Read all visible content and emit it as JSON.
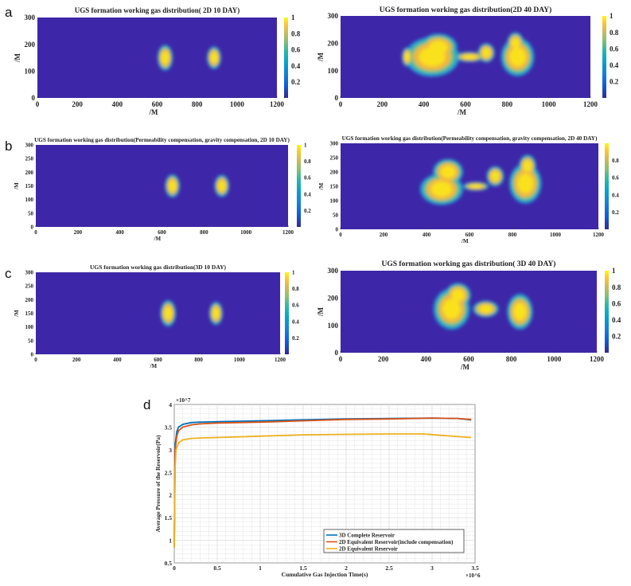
{
  "panel_labels": [
    "a",
    "b",
    "c",
    "d"
  ],
  "chart_data": [
    {
      "type": "heatmap",
      "panel": "a",
      "title": "UGS formation working gas distribution( 2D 10 DAY)",
      "xlabel": "/M",
      "ylabel": "/M",
      "xlim": [
        0,
        1200
      ],
      "ylim": [
        0,
        300
      ],
      "xticks": [
        "0",
        "200",
        "400",
        "600",
        "800",
        "1000",
        "1200"
      ],
      "yticks": [
        "0",
        "100",
        "200",
        "300"
      ],
      "colorbar_ticks": [
        "0.2",
        "0.4",
        "0.6",
        "0.8",
        "1"
      ],
      "colorbar_range": [
        0,
        1
      ],
      "colormap": "parula"
    },
    {
      "type": "heatmap",
      "panel": "a",
      "title": "UGS formation working gas distribution(2D 40 DAY)",
      "xlabel": "/M",
      "ylabel": "/M",
      "xlim": [
        0,
        1200
      ],
      "ylim": [
        0,
        300
      ],
      "xticks": [
        "0",
        "200",
        "400",
        "600",
        "800",
        "1000",
        "1200"
      ],
      "yticks": [
        "0",
        "100",
        "200",
        "300"
      ],
      "colorbar_ticks": [
        "0.2",
        "0.4",
        "0.6",
        "0.8",
        "1"
      ],
      "colorbar_range": [
        0,
        1
      ],
      "colormap": "parula"
    },
    {
      "type": "heatmap",
      "panel": "b",
      "title": "UGS formation working gas distribution(Permeability compensation, gravity compensation, 2D 10 DAY)",
      "xlabel": "/M",
      "ylabel": "/M",
      "xlim": [
        0,
        1200
      ],
      "ylim": [
        0,
        300
      ],
      "xticks": [
        "0",
        "200",
        "400",
        "600",
        "800",
        "1000",
        "1200"
      ],
      "yticks": [
        "0",
        "50",
        "100",
        "150",
        "200",
        "250",
        "300"
      ],
      "colorbar_ticks": [
        "0.2",
        "0.4",
        "0.6",
        "0.8",
        "1"
      ],
      "colorbar_range": [
        0,
        1
      ],
      "colormap": "parula"
    },
    {
      "type": "heatmap",
      "panel": "b",
      "title": "UGS formation working gas distribution(Permeability compensation, gravity compensation, 2D 40 DAY)",
      "xlabel": "/M",
      "ylabel": "/M",
      "xlim": [
        0,
        1200
      ],
      "ylim": [
        0,
        300
      ],
      "xticks": [
        "0",
        "200",
        "400",
        "600",
        "800",
        "1000",
        "1200"
      ],
      "yticks": [
        "0",
        "50",
        "100",
        "150",
        "200",
        "250",
        "300"
      ],
      "colorbar_ticks": [
        "0.2",
        "0.4",
        "0.6",
        "0.8"
      ],
      "colorbar_range": [
        0,
        1
      ],
      "colormap": "parula"
    },
    {
      "type": "heatmap",
      "panel": "c",
      "title": "UGS formation working gas distribution(3D 10 DAY)",
      "xlabel": "/M",
      "ylabel": "/M",
      "xlim": [
        0,
        1200
      ],
      "ylim": [
        0,
        300
      ],
      "xticks": [
        "0",
        "200",
        "400",
        "600",
        "800",
        "1000",
        "1200"
      ],
      "yticks": [
        "0",
        "50",
        "100",
        "150",
        "200",
        "250",
        "300"
      ],
      "colorbar_ticks": [
        "0.2",
        "0.4",
        "0.6",
        "0.8",
        "1"
      ],
      "colorbar_range": [
        0,
        1
      ],
      "colormap": "parula"
    },
    {
      "type": "heatmap",
      "panel": "c",
      "title": "UGS formation working gas distribution( 3D 40 DAY)",
      "xlabel": "/M",
      "ylabel": "/M",
      "xlim": [
        0,
        1200
      ],
      "ylim": [
        0,
        300
      ],
      "xticks": [
        "0",
        "200",
        "400",
        "600",
        "800",
        "1000",
        "1200"
      ],
      "yticks": [
        "0",
        "100",
        "200",
        "300"
      ],
      "colorbar_ticks": [
        "0.2",
        "0.4",
        "0.6",
        "0.8",
        "1"
      ],
      "colorbar_range": [
        0,
        1
      ],
      "colormap": "parula"
    },
    {
      "type": "line",
      "panel": "d",
      "xlabel": "Cumulative Gas Injection Time(s)",
      "ylabel": "Average Pressure of the Reservoir(Pa)",
      "x_multiplier": "×10^6",
      "y_multiplier": "×10^7",
      "xlim": [
        0,
        3.5
      ],
      "ylim": [
        0.5,
        4
      ],
      "xticks": [
        "0",
        "0.5",
        "1",
        "1.5",
        "2",
        "2.5",
        "3",
        "3.5"
      ],
      "yticks": [
        "0.5",
        "1",
        "1.5",
        "2",
        "2.5",
        "3",
        "3.5",
        "4"
      ],
      "grid": true,
      "legend_position": "bottom-right",
      "series": [
        {
          "name": "3D Complete Reservoir",
          "color": "#0072bd",
          "x": [
            0,
            0.01,
            0.03,
            0.05,
            0.1,
            0.2,
            0.3,
            0.5,
            1,
            1.5,
            2,
            2.5,
            3,
            3.3,
            3.45
          ],
          "y": [
            0.85,
            3.1,
            3.4,
            3.5,
            3.56,
            3.6,
            3.61,
            3.62,
            3.64,
            3.66,
            3.68,
            3.69,
            3.7,
            3.69,
            3.66
          ]
        },
        {
          "name": "2D Equivalent Reservoir(include compensation)",
          "color": "#d95319",
          "x": [
            0,
            0.01,
            0.03,
            0.05,
            0.1,
            0.2,
            0.3,
            0.5,
            1,
            1.5,
            2,
            2.5,
            3,
            3.3,
            3.45
          ],
          "y": [
            0.85,
            3.0,
            3.3,
            3.42,
            3.5,
            3.55,
            3.57,
            3.59,
            3.61,
            3.64,
            3.67,
            3.68,
            3.7,
            3.69,
            3.67
          ]
        },
        {
          "name": "2D Equivalent Reservoir",
          "color": "#edb120",
          "x": [
            0,
            0.01,
            0.02,
            0.05,
            0.1,
            0.2,
            0.3,
            0.5,
            1,
            1.5,
            2,
            2.5,
            2.9,
            3.1,
            3.45
          ],
          "y": [
            0.85,
            2.6,
            3.0,
            3.15,
            3.22,
            3.25,
            3.26,
            3.27,
            3.3,
            3.33,
            3.34,
            3.35,
            3.35,
            3.32,
            3.27
          ]
        }
      ]
    }
  ]
}
